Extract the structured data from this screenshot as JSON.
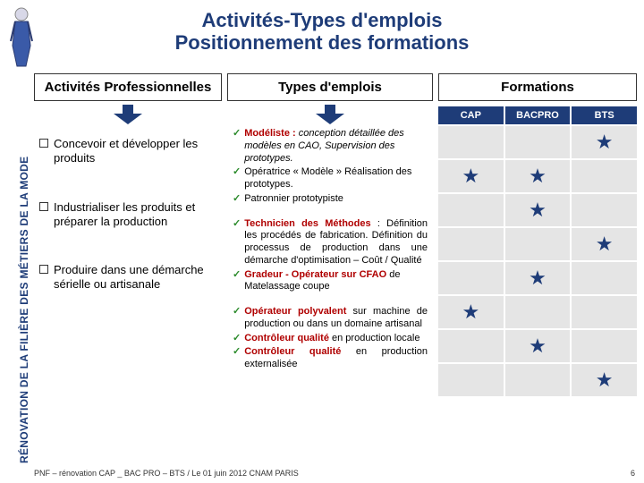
{
  "title_line1": "Activités-Types d'emplois",
  "title_line2": "Positionnement des formations",
  "sideband": "RÉNOVATION DE LA FILIÈRE DES MÉTIERS DE LA MODE",
  "headers": {
    "activites": "Activités Professionnelles",
    "types": "Types d'emplois",
    "formations": "Formations"
  },
  "activities": {
    "a1": "Concevoir et développer les produits",
    "a2": "Industrialiser les produits et préparer la production",
    "a3": "Produire dans une démarche sérielle ou artisanale"
  },
  "emplois": {
    "g1_l1a": "Modéliste :",
    "g1_l1b": " conception détaillée des modèles en CAO, Supervision des prototypes.",
    "g1_l2": "Opératrice « Modèle » Réalisation des prototypes.",
    "g1_l3": "Patronnier prototypiste",
    "g2_l1a": "Technicien des Méthodes",
    "g2_l1b": " : Définition les procédés de fabrication. Définition du processus de production dans une démarche d'optimisation – Coût / Qualité",
    "g2_l2a": "Gradeur - Opérateur sur CFAO",
    "g2_l2b": " de Matelassage coupe",
    "g3_l1a": "Opérateur polyvalent",
    "g3_l1b": " sur machine de production ou dans un domaine artisanal",
    "g3_l2a": "Contrôleur qualité",
    "g3_l2b": " en production locale",
    "g3_l3a": "Contrôleur qualité",
    "g3_l3b": " en production externalisée"
  },
  "grid": {
    "cols": {
      "cap": "CAP",
      "bacpro": "BACPRO",
      "bts": "BTS"
    },
    "star_color": "#1e3c78",
    "cell_bg": "#e5e5e5",
    "matrix": [
      [
        false,
        false,
        true
      ],
      [
        true,
        true,
        false
      ],
      [
        false,
        true,
        false
      ],
      [
        false,
        false,
        true
      ],
      [
        false,
        true,
        false
      ],
      [
        true,
        false,
        false
      ],
      [
        false,
        true,
        false
      ],
      [
        false,
        false,
        true
      ]
    ]
  },
  "arrow": {
    "fill": "#1e3c78",
    "width": 36,
    "height": 22
  },
  "footer": {
    "left": "PNF – rénovation CAP _ BAC PRO – BTS / Le 01 juin 2012 CNAM PARIS",
    "page": "6"
  },
  "colors": {
    "title": "#1e3c78",
    "header_bg": "#1e3c78",
    "red": "#b00000",
    "tick": "#2a8a2a"
  }
}
